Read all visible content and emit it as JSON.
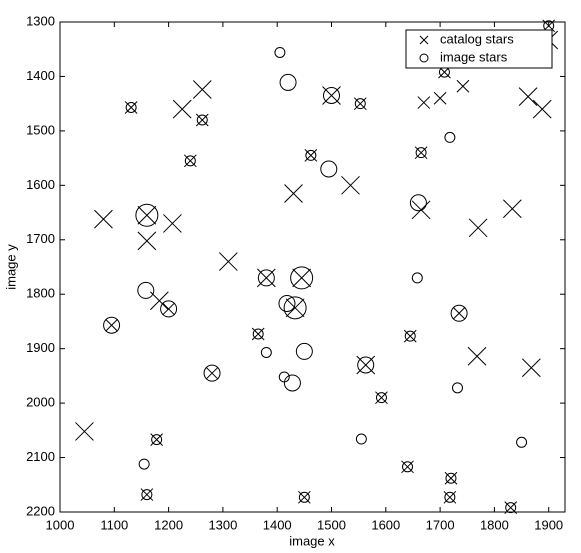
{
  "chart_data": {
    "type": "scatter",
    "xlabel": "image x",
    "ylabel": "image y",
    "xlim": [
      1000,
      1930
    ],
    "xticks": [
      1000,
      1100,
      1200,
      1300,
      1400,
      1500,
      1600,
      1700,
      1800,
      1900
    ],
    "ylim": [
      1300,
      2200
    ],
    "yticks": [
      1300,
      1400,
      1500,
      1600,
      1700,
      1800,
      1900,
      2000,
      2100,
      2200
    ],
    "y_reversed": true,
    "grid": false,
    "legend": "upper right",
    "series": [
      {
        "name": "catalog stars",
        "marker": "x",
        "color": "#000000",
        "x": [
          1900,
          1900,
          1131,
          1225,
          1262,
          1262,
          1240,
          1080,
          1160,
          1207,
          1310,
          1183,
          1430,
          1535,
          1462,
          1500,
          1553,
          1665,
          1670,
          1700,
          1708,
          1742,
          1862,
          1888,
          1665,
          1770,
          1833,
          1160,
          1380,
          1445,
          1433,
          1365,
          1095,
          1200,
          1280,
          1563,
          1645,
          1735,
          1768,
          1868,
          1592,
          1045,
          1178,
          1160,
          1450,
          1640,
          1720,
          1718,
          1830
        ],
        "values": [
          1307,
          1333,
          1457,
          1460,
          1424,
          1480,
          1555,
          1662,
          1702,
          1670,
          1740,
          1812,
          1615,
          1600,
          1545,
          1435,
          1450,
          1540,
          1448,
          1440,
          1392,
          1418,
          1437,
          1460,
          1645,
          1678,
          1643,
          1655,
          1770,
          1770,
          1825,
          1873,
          1857,
          1827,
          1945,
          1930,
          1877,
          1835,
          1914,
          1935,
          1990,
          2052,
          2067,
          2168,
          2173,
          2117,
          2138,
          2173,
          2192
        ],
        "sizes": [
          1,
          2,
          1,
          2,
          2,
          1,
          1,
          2,
          2,
          2,
          2,
          2,
          2,
          2,
          1,
          2,
          1,
          1,
          1,
          1,
          1,
          1,
          2,
          2,
          2,
          2,
          2,
          2,
          2,
          2,
          2,
          1,
          1,
          1,
          1,
          2,
          1,
          1,
          2,
          2,
          1,
          2,
          1,
          1,
          1,
          1,
          1,
          1,
          1
        ]
      },
      {
        "name": "image stars",
        "marker": "o",
        "color": "#000000",
        "x": [
          1900,
          1405,
          1420,
          1131,
          1500,
          1553,
          1262,
          1240,
          1495,
          1462,
          1665,
          1718,
          1708,
          1160,
          1660,
          1380,
          1445,
          1433,
          1418,
          1158,
          1095,
          1200,
          1380,
          1450,
          1413,
          1428,
          1280,
          1563,
          1735,
          1658,
          1732,
          1592,
          1645,
          1555,
          1850,
          1155,
          1178,
          1160,
          1450,
          1640,
          1720,
          1718,
          1830,
          1365
        ],
        "values": [
          1307,
          1356,
          1411,
          1457,
          1435,
          1450,
          1480,
          1555,
          1570,
          1545,
          1540,
          1512,
          1392,
          1655,
          1632,
          1770,
          1770,
          1825,
          1817,
          1793,
          1857,
          1827,
          1907,
          1905,
          1952,
          1963,
          1945,
          1930,
          1835,
          1770,
          1972,
          1990,
          1877,
          2066,
          2072,
          2112,
          2067,
          2168,
          2173,
          2117,
          2138,
          2173,
          2192,
          1873
        ],
        "sizes": [
          1,
          1,
          2,
          1,
          2,
          1,
          1,
          1,
          2,
          1,
          1,
          1,
          1,
          3,
          2,
          2,
          3,
          3,
          2,
          2,
          2,
          2,
          1,
          2,
          1,
          2,
          2,
          2,
          2,
          1,
          1,
          1,
          1,
          1,
          1,
          1,
          1,
          1,
          1,
          1,
          1,
          1,
          1,
          1
        ]
      }
    ]
  }
}
